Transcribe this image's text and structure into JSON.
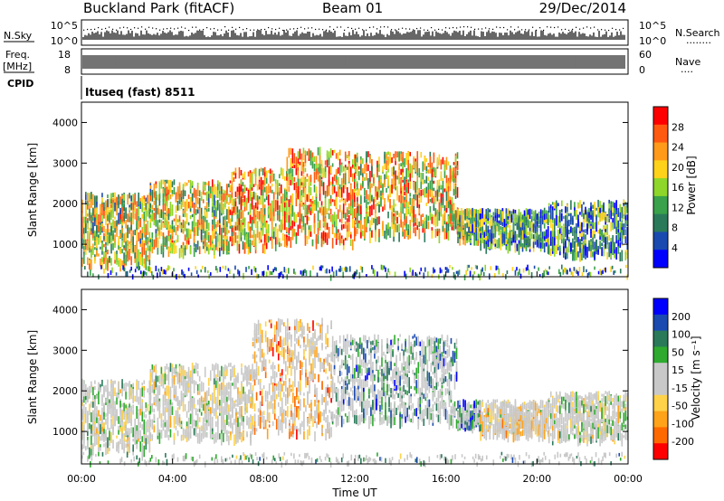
{
  "header": {
    "title": "Buckland Park (fitACF)",
    "beam": "Beam 01",
    "date": "29/Dec/2014"
  },
  "top_panels": {
    "nsky_label": "N.Sky",
    "nsearch_label": "N.Search",
    "nsearch_dots": "........",
    "noise_ticks_left": [
      "10^5",
      "10^0"
    ],
    "noise_ticks_right": [
      "10^5",
      "10^0"
    ],
    "freq_label": "Freq.",
    "freq_unit": "[MHz]",
    "freq_ticks": [
      "18",
      "8"
    ],
    "nave_label": "Nave",
    "nave_dots": "....",
    "nave_ticks": [
      "60",
      "0"
    ],
    "cpid_label": "CPID",
    "cpid_text": "Ituseq (fast) 8511"
  },
  "colors": {
    "power_scale": [
      "#0000ff",
      "#1a4ab0",
      "#2a7a5a",
      "#3aa24a",
      "#8ed62a",
      "#ffd21a",
      "#ff9a1a",
      "#ff5a10",
      "#ff0000"
    ],
    "velocity_scale": [
      "#ff0000",
      "#ff6a00",
      "#ffa31a",
      "#ffd24a",
      "#c8c8c8",
      "#c8c8c8",
      "#2faa2f",
      "#2a7a5a",
      "#1a4ab0",
      "#0000ff"
    ]
  },
  "chart_data": [
    {
      "type": "heatmap",
      "name": "power",
      "ylabel": "Slant Range [km]",
      "ylim": [
        200,
        4500
      ],
      "yticks": [
        "1000",
        "2000",
        "3000",
        "4000"
      ],
      "xlim": [
        0,
        24
      ],
      "colorbar_label": "Power [dB]",
      "colorbar_ticks": [
        "4",
        "8",
        "12",
        "16",
        "20",
        "24",
        "28"
      ],
      "colorbar_range": [
        0,
        32
      ],
      "bands": [
        {
          "t0": 0.0,
          "t1": 3.0,
          "r0": 600,
          "r1": 2300,
          "level": 0.55
        },
        {
          "t0": 3.0,
          "t1": 6.5,
          "r0": 900,
          "r1": 2600,
          "level": 0.55
        },
        {
          "t0": 6.5,
          "t1": 9.0,
          "r0": 1000,
          "r1": 2900,
          "level": 0.65
        },
        {
          "t0": 9.0,
          "t1": 12.0,
          "r0": 1100,
          "r1": 3400,
          "level": 0.7
        },
        {
          "t0": 12.0,
          "t1": 16.5,
          "r0": 1300,
          "r1": 3300,
          "level": 0.62
        },
        {
          "t0": 16.5,
          "t1": 17.5,
          "r0": 1200,
          "r1": 1900,
          "level": 0.45
        },
        {
          "t0": 17.5,
          "t1": 20.5,
          "r0": 1000,
          "r1": 1900,
          "level": 0.3
        },
        {
          "t0": 20.5,
          "t1": 24.0,
          "r0": 800,
          "r1": 2100,
          "level": 0.3
        }
      ]
    },
    {
      "type": "heatmap",
      "name": "velocity",
      "ylabel": "Slant Range [km]",
      "ylim": [
        200,
        4500
      ],
      "yticks": [
        "1000",
        "2000",
        "3000",
        "4000"
      ],
      "xlim": [
        0,
        24
      ],
      "xlabel": "Time UT",
      "xticks": [
        "00:00",
        "04:00",
        "08:00",
        "12:00",
        "16:00",
        "20:00",
        "00:00"
      ],
      "colorbar_label": "Velocity [m s⁻¹]",
      "colorbar_ticks": [
        "200",
        "100",
        "50",
        "15",
        "-15",
        "-50",
        "-100",
        "-200"
      ],
      "bands": [
        {
          "t0": 0.0,
          "t1": 3.0,
          "r0": 600,
          "r1": 2300,
          "bias": 0.5
        },
        {
          "t0": 3.0,
          "t1": 7.5,
          "r0": 900,
          "r1": 2700,
          "bias": 0.48
        },
        {
          "t0": 7.5,
          "t1": 11.0,
          "r0": 1000,
          "r1": 3800,
          "bias": 0.28
        },
        {
          "t0": 11.0,
          "t1": 16.5,
          "r0": 1300,
          "r1": 3400,
          "bias": 0.7
        },
        {
          "t0": 16.5,
          "t1": 17.5,
          "r0": 1200,
          "r1": 1800,
          "bias": 0.75
        },
        {
          "t0": 17.5,
          "t1": 20.5,
          "r0": 1000,
          "r1": 1800,
          "bias": 0.4
        },
        {
          "t0": 20.5,
          "t1": 24.0,
          "r0": 900,
          "r1": 2000,
          "bias": 0.5
        }
      ]
    }
  ]
}
